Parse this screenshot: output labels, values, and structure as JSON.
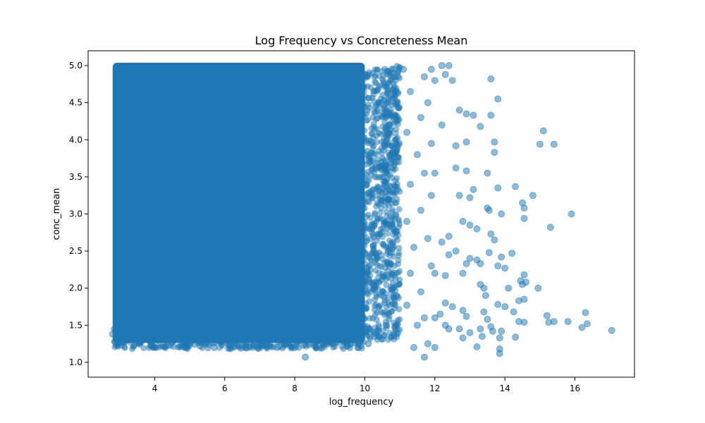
{
  "chart_data": {
    "type": "scatter",
    "title": "Log Frequency vs Concreteness Mean",
    "xlabel": "log_frequency",
    "ylabel": "conc_mean",
    "xlim": [
      2.1,
      17.7
    ],
    "ylim": [
      0.8,
      5.2
    ],
    "xticks": [
      4,
      6,
      8,
      10,
      12,
      14,
      16
    ],
    "yticks": [
      1.0,
      1.5,
      2.0,
      2.5,
      3.0,
      3.5,
      4.0,
      4.5,
      5.0
    ],
    "ytick_labels": [
      "1.0",
      "1.5",
      "2.0",
      "2.5",
      "3.0",
      "3.5",
      "4.0",
      "4.5",
      "5.0"
    ],
    "grid": false,
    "point_color": "#1f77b4",
    "point_alpha": 0.5,
    "dense_region": {
      "x": [
        2.8,
        10.0
      ],
      "y": [
        1.3,
        5.0
      ]
    },
    "points": [
      [
        11.9,
        4.95
      ],
      [
        12.2,
        5.0
      ],
      [
        12.4,
        5.0
      ],
      [
        12.3,
        4.88
      ],
      [
        12.0,
        4.8
      ],
      [
        12.5,
        4.8
      ],
      [
        12.9,
        4.35
      ],
      [
        13.1,
        4.33
      ],
      [
        12.7,
        4.4
      ],
      [
        13.6,
        4.82
      ],
      [
        13.8,
        4.55
      ],
      [
        13.6,
        4.33
      ],
      [
        13.3,
        4.18
      ],
      [
        12.2,
        4.2
      ],
      [
        12.6,
        3.92
      ],
      [
        12.9,
        3.97
      ],
      [
        13.7,
        3.97
      ],
      [
        13.7,
        3.83
      ],
      [
        12.0,
        3.55
      ],
      [
        12.6,
        3.62
      ],
      [
        12.9,
        3.58
      ],
      [
        13.1,
        3.33
      ],
      [
        12.7,
        3.25
      ],
      [
        13.0,
        3.22
      ],
      [
        13.5,
        3.55
      ],
      [
        13.8,
        3.35
      ],
      [
        14.3,
        3.37
      ],
      [
        15.1,
        4.12
      ],
      [
        15.0,
        3.94
      ],
      [
        15.4,
        3.94
      ],
      [
        14.8,
        3.25
      ],
      [
        14.5,
        3.15
      ],
      [
        14.55,
        3.08
      ],
      [
        14.55,
        2.94
      ],
      [
        13.9,
        3.0
      ],
      [
        13.5,
        3.08
      ],
      [
        13.55,
        3.05
      ],
      [
        13.2,
        2.8
      ],
      [
        13.0,
        2.85
      ],
      [
        13.6,
        2.73
      ],
      [
        13.7,
        2.65
      ],
      [
        15.3,
        2.82
      ],
      [
        15.9,
        3.0
      ],
      [
        12.8,
        2.9
      ],
      [
        12.4,
        2.7
      ],
      [
        12.2,
        2.62
      ],
      [
        12.4,
        2.45
      ],
      [
        12.6,
        2.5
      ],
      [
        13.0,
        2.4
      ],
      [
        13.2,
        2.38
      ],
      [
        13.3,
        2.33
      ],
      [
        13.55,
        2.48
      ],
      [
        13.9,
        2.42
      ],
      [
        14.0,
        2.27
      ],
      [
        14.2,
        2.47
      ],
      [
        12.8,
        2.2
      ],
      [
        12.9,
        2.33
      ],
      [
        12.3,
        2.17
      ],
      [
        12.0,
        2.2
      ],
      [
        13.3,
        2.05
      ],
      [
        13.4,
        2.0
      ],
      [
        13.45,
        1.9
      ],
      [
        13.8,
        2.3
      ],
      [
        14.1,
        2.0
      ],
      [
        14.45,
        2.1
      ],
      [
        14.5,
        2.05
      ],
      [
        14.6,
        2.08
      ],
      [
        14.55,
        2.18
      ],
      [
        14.55,
        1.85
      ],
      [
        14.95,
        2.0
      ],
      [
        14.4,
        1.83
      ],
      [
        13.8,
        1.78
      ],
      [
        14.0,
        1.75
      ],
      [
        14.25,
        1.68
      ],
      [
        13.4,
        1.68
      ],
      [
        13.5,
        1.58
      ],
      [
        12.8,
        1.7
      ],
      [
        12.9,
        1.62
      ],
      [
        12.5,
        1.75
      ],
      [
        12.3,
        1.8
      ],
      [
        12.15,
        1.65
      ],
      [
        12.0,
        1.6
      ],
      [
        12.3,
        1.5
      ],
      [
        12.4,
        1.45
      ],
      [
        12.7,
        1.45
      ],
      [
        13.0,
        1.4
      ],
      [
        13.3,
        1.45
      ],
      [
        13.6,
        1.48
      ],
      [
        13.35,
        1.35
      ],
      [
        13.65,
        1.42
      ],
      [
        13.9,
        1.42
      ],
      [
        14.4,
        1.55
      ],
      [
        14.55,
        1.54
      ],
      [
        15.2,
        1.63
      ],
      [
        15.25,
        1.54
      ],
      [
        15.4,
        1.55
      ],
      [
        15.8,
        1.55
      ],
      [
        16.3,
        1.67
      ],
      [
        16.35,
        1.52
      ],
      [
        16.2,
        1.47
      ],
      [
        17.05,
        1.43
      ],
      [
        13.85,
        1.33
      ],
      [
        14.3,
        1.34
      ],
      [
        12.8,
        1.33
      ],
      [
        13.2,
        1.21
      ],
      [
        13.85,
        1.18
      ],
      [
        13.85,
        1.12
      ],
      [
        12.0,
        1.2
      ],
      [
        11.7,
        1.07
      ],
      [
        11.4,
        1.2
      ],
      [
        11.8,
        1.25
      ],
      [
        11.5,
        1.5
      ],
      [
        11.7,
        1.6
      ],
      [
        11.2,
        1.77
      ],
      [
        11.6,
        1.95
      ],
      [
        11.3,
        2.2
      ],
      [
        11.9,
        2.3
      ],
      [
        11.4,
        2.55
      ],
      [
        11.8,
        2.67
      ],
      [
        11.2,
        2.9
      ],
      [
        11.6,
        3.05
      ],
      [
        11.9,
        3.25
      ],
      [
        11.3,
        3.4
      ],
      [
        11.7,
        3.55
      ],
      [
        11.5,
        3.8
      ],
      [
        11.9,
        3.95
      ],
      [
        11.2,
        4.1
      ],
      [
        11.6,
        4.3
      ],
      [
        11.8,
        4.5
      ],
      [
        11.3,
        4.65
      ],
      [
        11.7,
        4.85
      ],
      [
        11.1,
        4.95
      ],
      [
        10.8,
        4.9
      ],
      [
        10.9,
        4.5
      ],
      [
        10.7,
        4.2
      ],
      [
        10.9,
        3.7
      ],
      [
        10.6,
        3.3
      ],
      [
        10.8,
        2.8
      ],
      [
        10.7,
        2.3
      ],
      [
        10.9,
        1.9
      ],
      [
        10.6,
        1.5
      ],
      [
        10.4,
        1.35
      ],
      [
        10.1,
        1.25
      ],
      [
        9.8,
        1.2
      ],
      [
        9.5,
        1.22
      ],
      [
        9.1,
        1.25
      ],
      [
        8.7,
        1.22
      ],
      [
        8.3,
        1.07
      ],
      [
        7.9,
        1.25
      ],
      [
        7.5,
        1.2
      ],
      [
        7.0,
        1.22
      ],
      [
        6.6,
        1.2
      ],
      [
        6.1,
        1.25
      ],
      [
        5.7,
        1.2
      ],
      [
        5.3,
        1.22
      ],
      [
        4.9,
        1.2
      ],
      [
        4.5,
        1.27
      ],
      [
        4.1,
        1.3
      ],
      [
        3.6,
        1.35
      ],
      [
        3.2,
        1.3
      ],
      [
        3.0,
        1.27
      ],
      [
        2.95,
        1.4
      ],
      [
        2.85,
        1.45
      ],
      [
        2.8,
        1.38
      ]
    ]
  }
}
